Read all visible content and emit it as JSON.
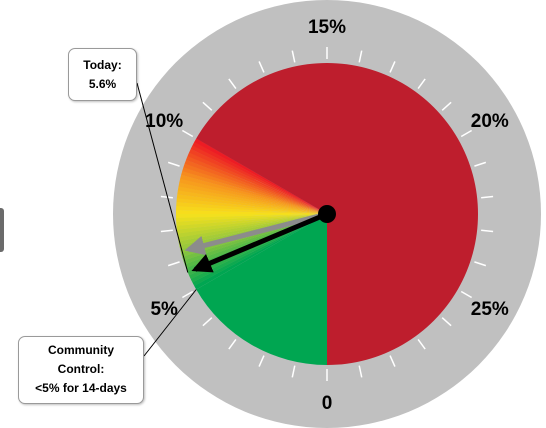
{
  "chart_data": {
    "type": "gauge",
    "title": "",
    "range": [
      0,
      30
    ],
    "direction": "clockwise from bottom",
    "tick_labels": [
      {
        "value": 0,
        "label": "0"
      },
      {
        "value": 5,
        "label": "5%"
      },
      {
        "value": 10,
        "label": "10%"
      },
      {
        "value": 15,
        "label": "15%"
      },
      {
        "value": 20,
        "label": "20%"
      },
      {
        "value": 25,
        "label": "25%"
      }
    ],
    "minor_tick_step": 1,
    "bands": [
      {
        "from": 0,
        "to": 5,
        "color": "#00a651"
      },
      {
        "from": 5,
        "to": 10,
        "color": "#f7e11c",
        "style": "gradient green-yellow-orange-red"
      },
      {
        "from": 10,
        "to": 30,
        "color": "#be1e2d"
      }
    ],
    "needles": [
      {
        "value": 5.6,
        "color": "#000000"
      },
      {
        "value": 6.3,
        "color": "#8c8c8c"
      }
    ],
    "callouts": {
      "today": {
        "line1": "Today:",
        "line2": "5.6%"
      },
      "community": {
        "line1": "Community",
        "line2": "Control:",
        "line3": "<5% for 14-days"
      }
    },
    "colors": {
      "ring": "#c0c0c0",
      "red": "#be1e2d",
      "green": "#00a651",
      "yellow": "#f7e11c",
      "tick": "#ffffff"
    }
  }
}
